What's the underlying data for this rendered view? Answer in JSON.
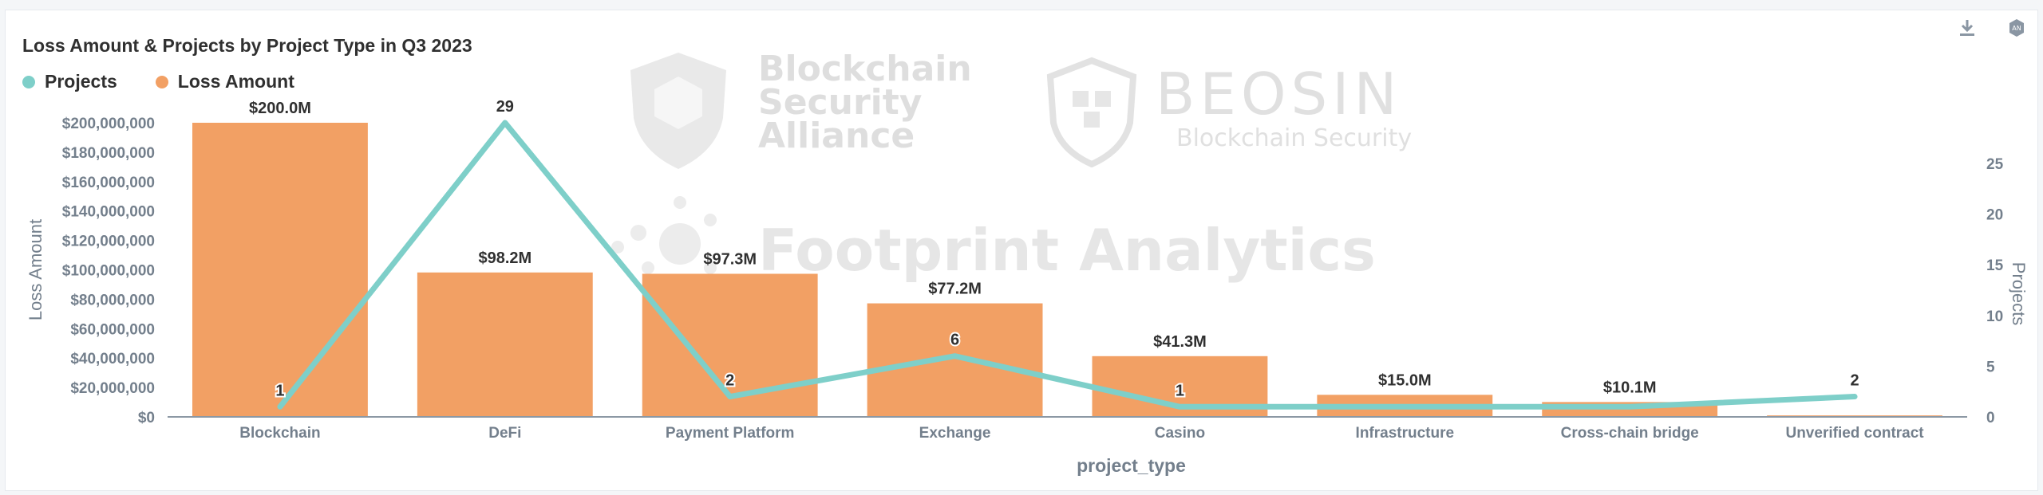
{
  "chart_data": {
    "type": "bar",
    "title": "Loss Amount & Projects by Project Type in Q3 2023",
    "categories": [
      "Blockchain",
      "DeFi",
      "Payment Platform",
      "Exchange",
      "Casino",
      "Infrastructure",
      "Cross-chain bridge",
      "Unverified contract"
    ],
    "series": [
      {
        "name": "Loss Amount",
        "type": "bar",
        "axis": "left",
        "color": "#f2a064",
        "values": [
          200000000,
          98200000,
          97300000,
          77200000,
          41300000,
          15000000,
          10100000,
          1000000
        ],
        "labels": [
          "$200.0M",
          "$98.2M",
          "$97.3M",
          "$77.2M",
          "$41.3M",
          "$15.0M",
          "$10.1M",
          ""
        ]
      },
      {
        "name": "Projects",
        "type": "line",
        "axis": "right",
        "color": "#7ecfc9",
        "values": [
          1,
          29,
          2,
          6,
          1,
          1,
          1,
          2
        ],
        "labels": [
          "1",
          "29",
          "2",
          "6",
          "1",
          "",
          "",
          "2"
        ]
      }
    ],
    "xlabel": "project_type",
    "ylabel": "Loss Amount",
    "y2label": "Projects",
    "ylim": [
      0,
      200000000
    ],
    "y2lim": [
      0,
      29
    ],
    "yticks": [
      0,
      20000000,
      40000000,
      60000000,
      80000000,
      100000000,
      120000000,
      140000000,
      160000000,
      180000000,
      200000000
    ],
    "yticklabels": [
      "$0",
      "$20,000,000",
      "$40,000,000",
      "$60,000,000",
      "$80,000,000",
      "$100,000,000",
      "$120,000,000",
      "$140,000,000",
      "$160,000,000",
      "$180,000,000",
      "$200,000,000"
    ],
    "y2ticks": [
      0,
      5,
      10,
      15,
      20,
      25
    ],
    "y2ticklabels": [
      "0",
      "5",
      "10",
      "15",
      "20",
      "25"
    ],
    "legend": [
      "Projects",
      "Loss Amount"
    ],
    "legend_position": "top-left",
    "grid": false
  },
  "watermarks": {
    "bsa_line1": "Blockchain",
    "bsa_line2": "Security",
    "bsa_line3": "Alliance",
    "beosin_title": "BEOSIN",
    "beosin_sub": "Blockchain Security",
    "footprint": "Footprint Analytics"
  },
  "toolbar": {
    "download_icon": "download-icon",
    "settings_icon": "chart-settings-icon"
  }
}
